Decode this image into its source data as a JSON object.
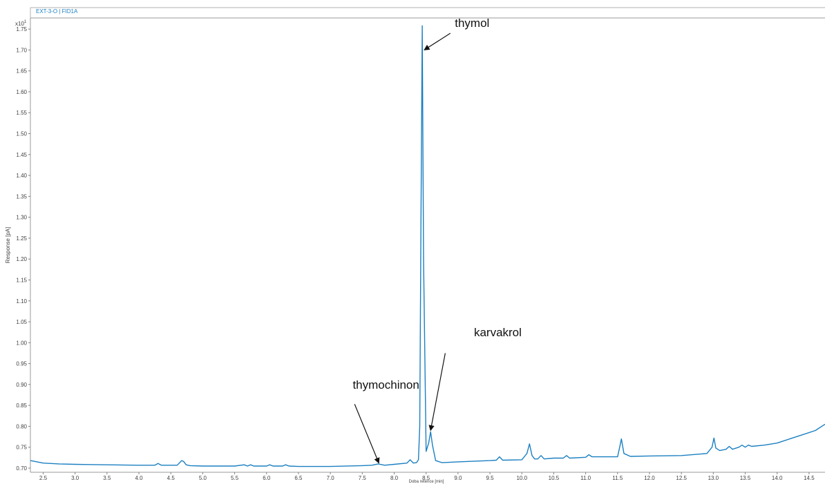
{
  "chart_data": {
    "type": "line",
    "panel_title": "EXT-3-O | FID1A",
    "ylabel": "Response [pA]",
    "xlabel": "Doba retence [min]",
    "y_exponent": "x10",
    "y_exponent_sup": "1",
    "xlim": [
      2.3,
      14.75
    ],
    "ylim": [
      0.7,
      1.77
    ],
    "x_ticks": [
      "2.5",
      "3.0",
      "3.5",
      "4.0",
      "4.5",
      "5.0",
      "5.5",
      "6.0",
      "6.5",
      "7.0",
      "7.5",
      "8.0",
      "8.5",
      "9.0",
      "9.5",
      "10.0",
      "10.5",
      "11.0",
      "11.5",
      "12.0",
      "12.5",
      "13.0",
      "13.5",
      "14.0",
      "14.5"
    ],
    "y_ticks": [
      "0.70",
      "0.75",
      "0.80",
      "0.85",
      "0.90",
      "0.95",
      "1.00",
      "1.05",
      "1.10",
      "1.15",
      "1.20",
      "1.25",
      "1.30",
      "1.35",
      "1.40",
      "1.45",
      "1.50",
      "1.55",
      "1.60",
      "1.65",
      "1.70",
      "1.75"
    ],
    "series": [
      {
        "color": "#1a7fc1",
        "x": [
          2.3,
          2.5,
          2.75,
          3.0,
          3.5,
          4.0,
          4.25,
          4.3,
          4.35,
          4.6,
          4.67,
          4.7,
          4.74,
          4.8,
          5.0,
          5.5,
          5.65,
          5.7,
          5.75,
          5.8,
          6.0,
          6.05,
          6.1,
          6.25,
          6.3,
          6.35,
          6.5,
          7.0,
          7.5,
          7.65,
          7.75,
          7.85,
          8.0,
          8.2,
          8.25,
          8.3,
          8.35,
          8.38,
          8.4,
          8.42,
          8.44,
          8.46,
          8.5,
          8.54,
          8.57,
          8.6,
          8.65,
          8.75,
          9.0,
          9.5,
          9.6,
          9.65,
          9.7,
          10.0,
          10.08,
          10.12,
          10.16,
          10.2,
          10.25,
          10.3,
          10.35,
          10.5,
          10.65,
          10.7,
          10.75,
          11.0,
          11.05,
          11.1,
          11.5,
          11.54,
          11.56,
          11.6,
          11.7,
          12.0,
          12.5,
          12.9,
          12.98,
          13.01,
          13.04,
          13.1,
          13.2,
          13.25,
          13.3,
          13.4,
          13.45,
          13.5,
          13.55,
          13.6,
          13.8,
          14.0,
          14.2,
          14.4,
          14.6,
          14.75
        ],
        "y": [
          0.718,
          0.712,
          0.71,
          0.709,
          0.708,
          0.707,
          0.707,
          0.711,
          0.707,
          0.707,
          0.718,
          0.716,
          0.708,
          0.706,
          0.705,
          0.705,
          0.708,
          0.705,
          0.708,
          0.705,
          0.705,
          0.708,
          0.705,
          0.705,
          0.708,
          0.705,
          0.704,
          0.704,
          0.706,
          0.707,
          0.71,
          0.707,
          0.709,
          0.712,
          0.72,
          0.712,
          0.713,
          0.72,
          0.8,
          1.3,
          1.758,
          1.2,
          0.74,
          0.76,
          0.787,
          0.755,
          0.718,
          0.713,
          0.715,
          0.718,
          0.719,
          0.727,
          0.719,
          0.72,
          0.735,
          0.758,
          0.73,
          0.722,
          0.722,
          0.73,
          0.722,
          0.724,
          0.724,
          0.73,
          0.724,
          0.726,
          0.732,
          0.727,
          0.727,
          0.755,
          0.77,
          0.735,
          0.728,
          0.729,
          0.73,
          0.735,
          0.75,
          0.772,
          0.748,
          0.742,
          0.745,
          0.752,
          0.745,
          0.75,
          0.755,
          0.75,
          0.755,
          0.752,
          0.755,
          0.76,
          0.77,
          0.78,
          0.79,
          0.805
        ]
      }
    ],
    "annotations": [
      {
        "text": "thymol",
        "x_text": 8.95,
        "y_text": 1.755,
        "x_arrow_from": 8.88,
        "y_arrow_from": 1.74,
        "x_arrow_to": 8.47,
        "y_arrow_to": 1.7
      },
      {
        "text": "karvakrol",
        "x_text": 9.25,
        "y_text": 1.015,
        "x_arrow_from": 8.8,
        "y_arrow_from": 0.975,
        "x_arrow_to": 8.57,
        "y_arrow_to": 0.79
      },
      {
        "text": "thymochinon",
        "x_text": 7.35,
        "y_text": 0.89,
        "x_arrow_from": 7.38,
        "y_arrow_from": 0.853,
        "x_arrow_to": 7.76,
        "y_arrow_to": 0.712
      }
    ],
    "grid": false,
    "legend": "none"
  }
}
